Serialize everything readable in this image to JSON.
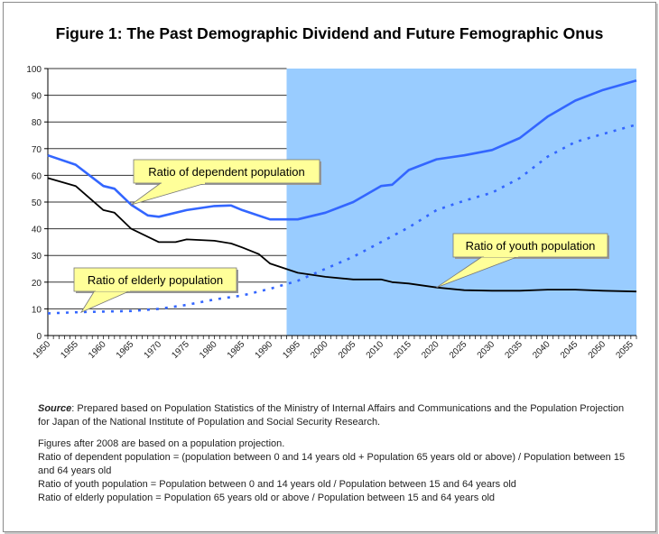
{
  "chart_data": {
    "type": "line",
    "title": "Figure 1: The Past Demographic Dividend and Future Femographic Onus",
    "xlim": [
      1950,
      2056
    ],
    "ylim": [
      0,
      100
    ],
    "yticks": [
      0,
      10,
      20,
      30,
      40,
      50,
      60,
      70,
      80,
      90,
      100
    ],
    "xticks": [
      1950,
      1955,
      1960,
      1965,
      1970,
      1975,
      1980,
      1985,
      1990,
      1995,
      2000,
      2005,
      2010,
      2015,
      2020,
      2025,
      2030,
      2035,
      2040,
      2045,
      2050,
      2055
    ],
    "grid": "horizontal, historical period only",
    "projection_shading": {
      "from": 1993,
      "to": 2056,
      "color": "#99CCFF"
    },
    "series": [
      {
        "name": "Ratio of dependent population",
        "color": "#3366FF",
        "style": "solid",
        "x": [
          1950,
          1955,
          1960,
          1962,
          1965,
          1968,
          1970,
          1975,
          1980,
          1983,
          1985,
          1990,
          1995,
          2000,
          2005,
          2010,
          2012,
          2015,
          2020,
          2025,
          2030,
          2035,
          2040,
          2045,
          2050,
          2056
        ],
        "y": [
          67.5,
          64,
          56,
          55,
          49,
          45,
          44.5,
          47,
          48.5,
          48.7,
          47,
          43.5,
          43.5,
          46,
          50,
          56,
          56.5,
          62,
          66,
          67.5,
          69.5,
          74,
          82,
          88,
          92,
          95.5
        ]
      },
      {
        "name": "Ratio of youth population",
        "color": "#000000",
        "style": "solid",
        "x": [
          1950,
          1955,
          1960,
          1962,
          1965,
          1970,
          1973,
          1975,
          1980,
          1983,
          1985,
          1988,
          1990,
          1995,
          2000,
          2005,
          2010,
          2012,
          2015,
          2020,
          2025,
          2030,
          2035,
          2040,
          2045,
          2050,
          2056
        ],
        "y": [
          59,
          56,
          47,
          46,
          40,
          35,
          35,
          36,
          35.5,
          34.5,
          33,
          30.5,
          27,
          23.5,
          22,
          21,
          21,
          20,
          19.5,
          18,
          17,
          16.8,
          16.8,
          17.2,
          17.2,
          16.8,
          16.5
        ]
      },
      {
        "name": "Ratio of elderly population",
        "color": "#3366FF",
        "style": "dotted",
        "x": [
          1950,
          1955,
          1960,
          1965,
          1970,
          1975,
          1980,
          1985,
          1990,
          1995,
          2000,
          2005,
          2010,
          2015,
          2020,
          2025,
          2030,
          2035,
          2040,
          2045,
          2050,
          2056
        ],
        "y": [
          8.3,
          8.7,
          9,
          9.2,
          10,
          11.5,
          13.5,
          15,
          17.5,
          20.5,
          25,
          29.5,
          35,
          40.5,
          47,
          50.5,
          53.5,
          59,
          67,
          72.5,
          75.5,
          79
        ]
      }
    ],
    "annotations": [
      {
        "text": "Ratio of dependent population",
        "points_to": [
          1965,
          49
        ]
      },
      {
        "text": "Ratio of youth population",
        "points_to": [
          2020,
          18
        ]
      },
      {
        "text": "Ratio of elderly population",
        "points_to": [
          1956,
          8.7
        ]
      }
    ]
  },
  "notes": {
    "source_label": "Source",
    "source_text": ": Prepared based on Population Statistics of the Ministry of Internal Affairs and Communications and the Population Projection for Japan of the National Institute of Population and Social Security Research.",
    "lines": [
      "Figures after 2008 are based on a population projection.",
      "Ratio of dependent population = (population between 0 and 14 years old + Population 65 years old or above) / Population between 15 and 64 years old",
      "Ratio of youth population = Population between 0 and 14 years old / Population between 15 and 64 years old",
      "Ratio of elderly population = Population 65 years old or above / Population between 15 and 64 years old"
    ]
  }
}
